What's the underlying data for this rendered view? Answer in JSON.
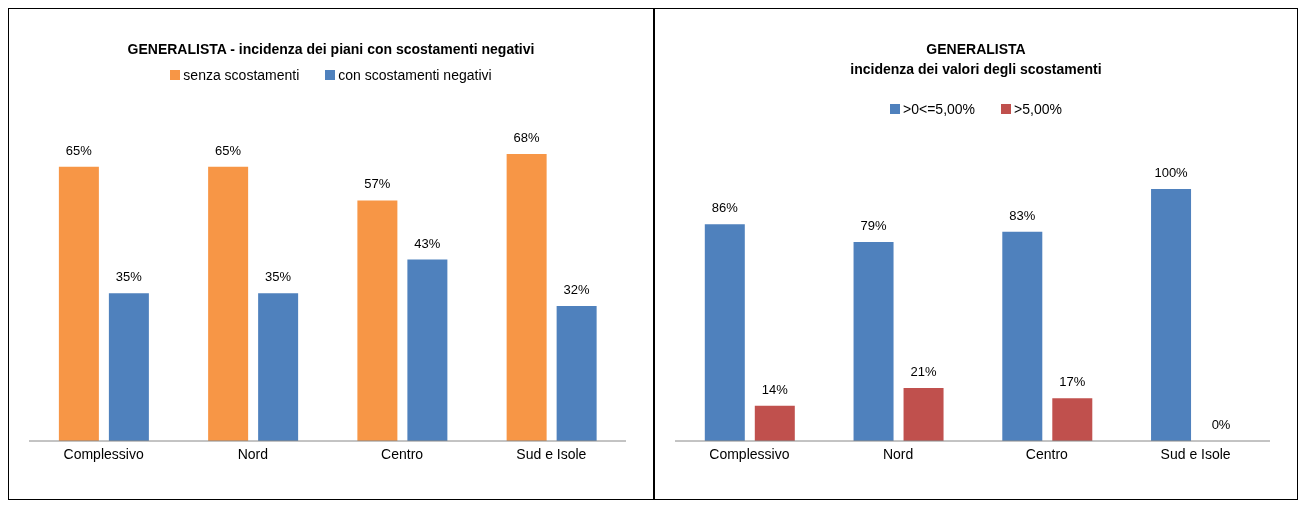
{
  "chart_data": [
    {
      "type": "bar",
      "title": "GENERALISTA - incidenza dei piani con scostamenti negativi",
      "categories": [
        "Complessivo",
        "Nord",
        "Centro",
        "Sud e Isole"
      ],
      "legend": "top",
      "series": [
        {
          "name": "senza scostamenti",
          "color": "#f79646",
          "values": [
            65,
            65,
            57,
            68
          ],
          "value_labels": [
            "65%",
            "65%",
            "57%",
            "68%"
          ]
        },
        {
          "name": "con scostamenti negativi",
          "color": "#4f81bd",
          "values": [
            35,
            35,
            43,
            32
          ],
          "value_labels": [
            "35%",
            "35%",
            "43%",
            "32%"
          ]
        }
      ]
    },
    {
      "type": "bar",
      "title": "GENERALISTA\nincidenza dei valori degli scostamenti",
      "categories": [
        "Complessivo",
        "Nord",
        "Centro",
        "Sud e Isole"
      ],
      "legend": "top",
      "series": [
        {
          "name": ">0<=5,00%",
          "color": "#4f81bd",
          "values": [
            86,
            79,
            83,
            100
          ],
          "value_labels": [
            "86%",
            "79%",
            "83%",
            "100%"
          ]
        },
        {
          "name": ">5,00%",
          "color": "#c0504d",
          "values": [
            14,
            21,
            17,
            0
          ],
          "value_labels": [
            "14%",
            "21%",
            "17%",
            "0%"
          ]
        }
      ]
    }
  ]
}
